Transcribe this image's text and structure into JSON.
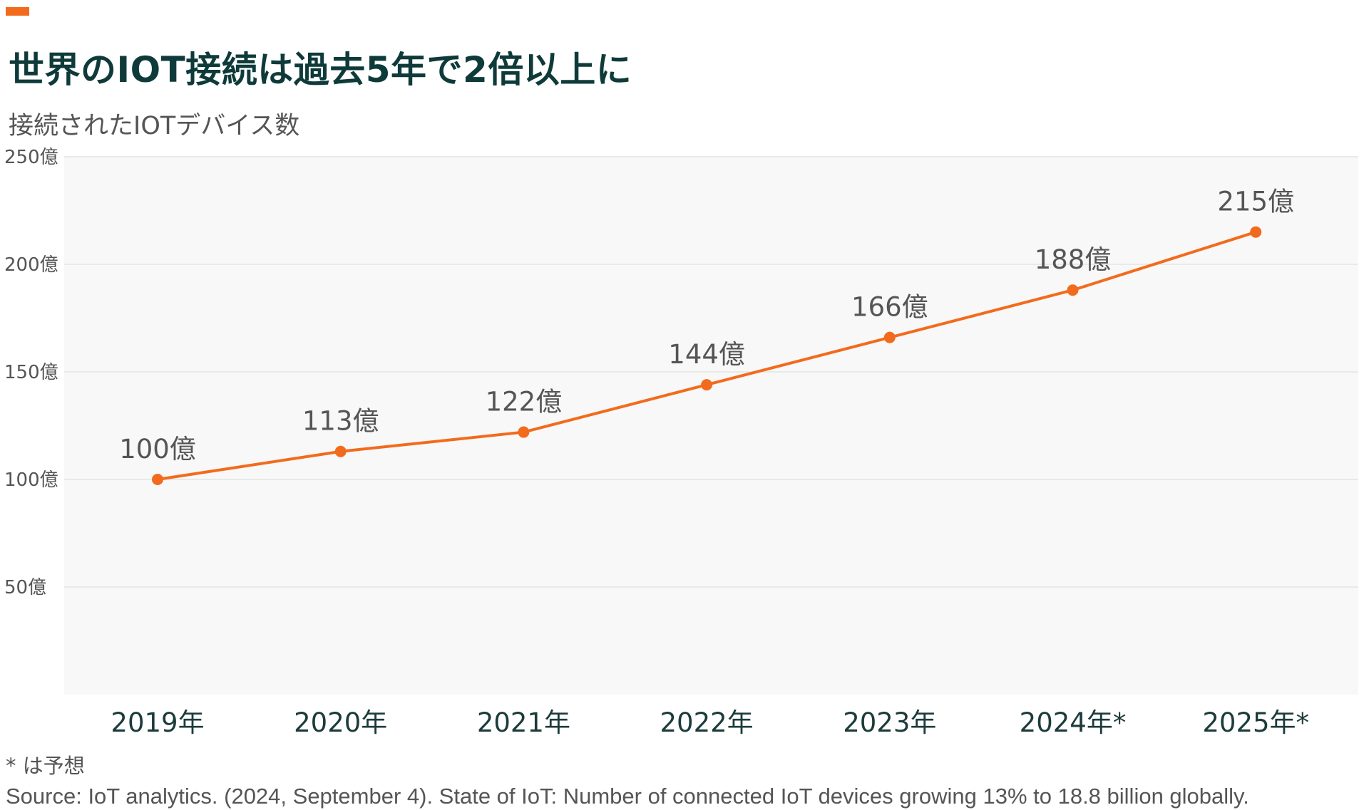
{
  "header": {
    "title": "世界のIOT接続は過去5年で2倍以上に",
    "subtitle": "接続されたIOTデバイス数"
  },
  "footer": {
    "note": "* は予想",
    "source": "Source: IoT analytics. (2024, September 4). State of IoT: Number of connected IoT devices growing 13% to 18.8 billion globally."
  },
  "colors": {
    "accent": "#f26b1d",
    "plot_background": "#f7f8f7",
    "gridline": "#e3e6e3",
    "title": "#0f3a3a",
    "axis_label": "#1c3b3b",
    "text_gray": "#555555"
  },
  "chart_data": {
    "type": "line",
    "title": "世界のIOT接続は過去5年で2倍以上に",
    "subtitle": "接続されたIOTデバイス数",
    "categories": [
      "2019年",
      "2020年",
      "2021年",
      "2022年",
      "2023年",
      "2024年*",
      "2025年*"
    ],
    "series": [
      {
        "values": [
          100,
          113,
          122,
          144,
          166,
          188,
          215
        ],
        "labels": [
          "100億",
          "113億",
          "122億",
          "144億",
          "166億",
          "188億",
          "215億"
        ]
      }
    ],
    "y_ticks": [
      50,
      100,
      150,
      200,
      250
    ],
    "y_tick_labels": [
      "50億",
      "100億",
      "150億",
      "200億",
      "250億"
    ],
    "ylim": [
      0,
      250
    ],
    "grid": true,
    "legend": "none"
  }
}
